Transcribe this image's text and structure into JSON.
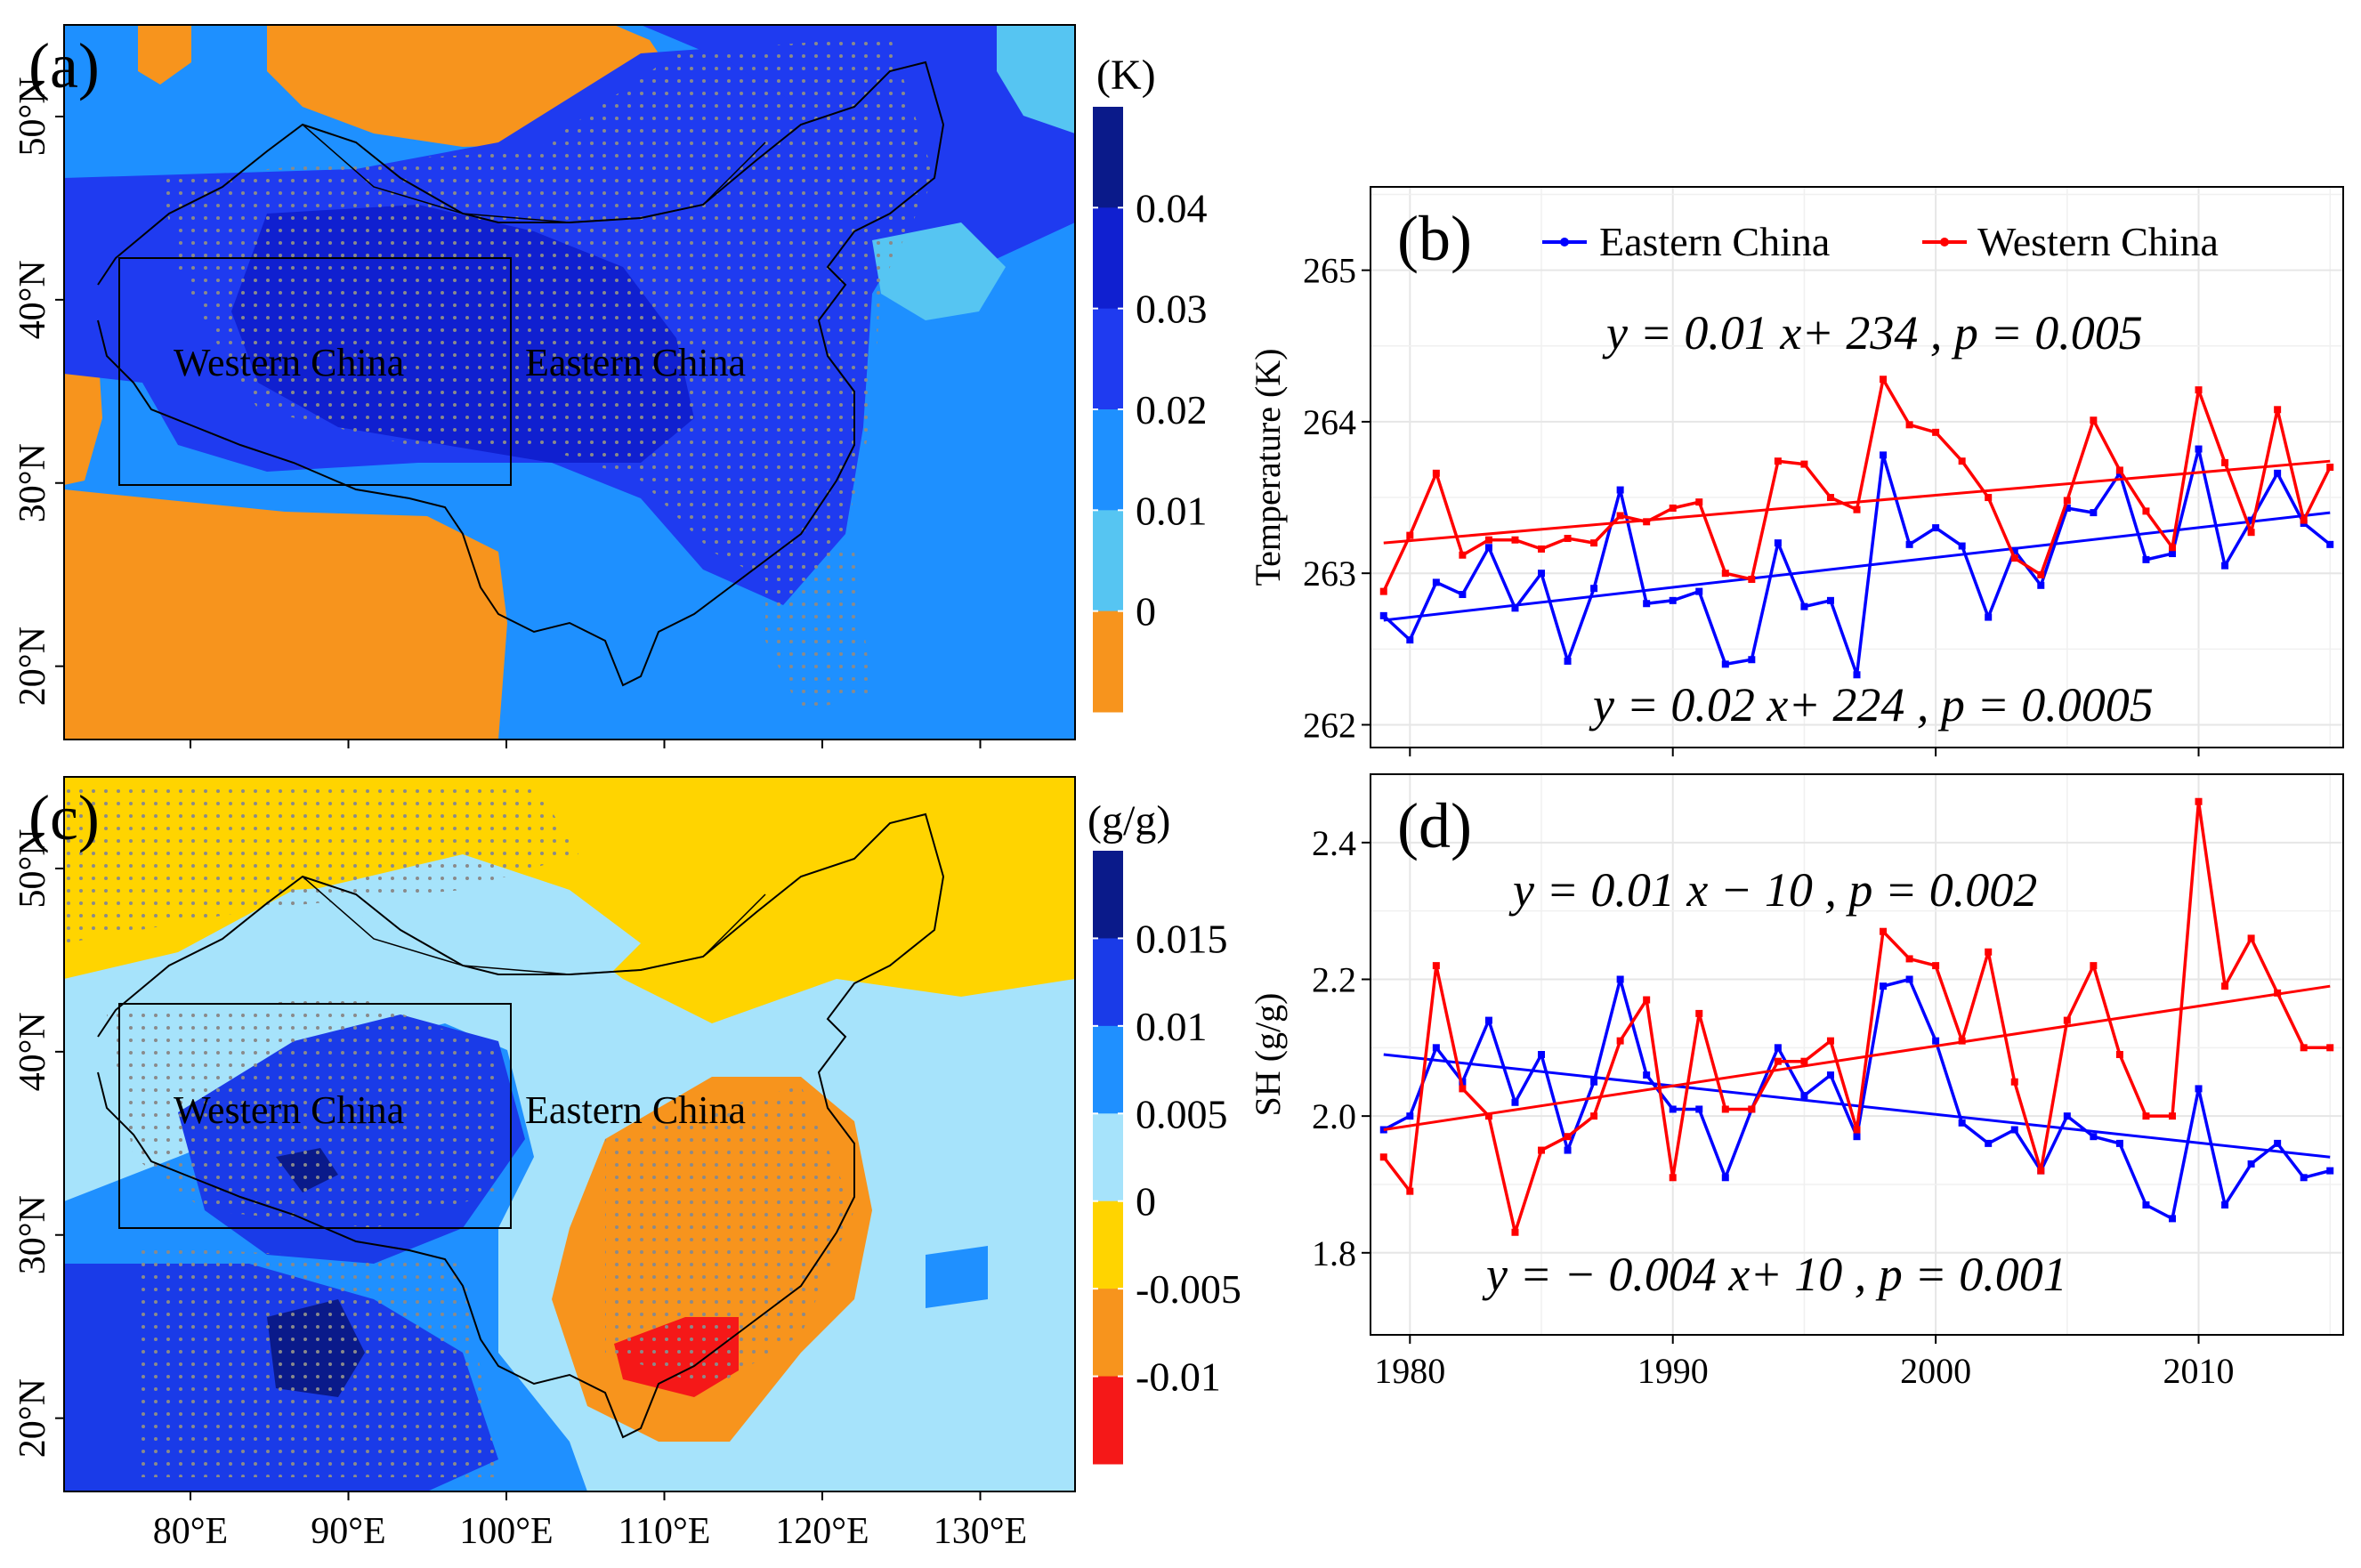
{
  "colors": {
    "orange": "#f7941d",
    "light_blue": "#56c5f2",
    "mid_blue": "#1e90ff",
    "blue": "#1f3bf0",
    "deep_blue": "#1020d0",
    "navy": "#0a1a8a",
    "sh_yellow": "#ffd400",
    "sh_orange": "#f7941d",
    "sh_red": "#f51818",
    "sh_pale_blue": "#a6e3fb",
    "sh_blue": "#1f90ff",
    "sh_dblue": "#1a3be8",
    "sh_navy": "#0a1a8a",
    "east_line": "#0000ff",
    "west_line": "#ff0000"
  },
  "chart_data": [
    {
      "panel": "(a)",
      "type": "heatmap",
      "unit": "(K)",
      "x_ticks": [
        "80°E",
        "90°E",
        "100°E",
        "110°E",
        "120°E",
        "130°E"
      ],
      "y_ticks": [
        "20°N",
        "30°N",
        "40°N",
        "50°N"
      ],
      "xlim": [
        72,
        136
      ],
      "ylim": [
        16,
        55
      ],
      "colorbar_labels": [
        "0.04",
        "0.03",
        "0.02",
        "0.01",
        "0"
      ],
      "colorbar_levels": [
        0.05,
        0.04,
        0.03,
        0.02,
        0.01,
        0,
        -0.01
      ],
      "region_box": {
        "lon": [
          75,
          100
        ],
        "lat": [
          30,
          40
        ]
      },
      "region_labels": [
        "Western China",
        "Eastern China"
      ]
    },
    {
      "panel": "(b)",
      "type": "line",
      "ylabel": "Temperature (K)",
      "xlim": [
        1978.5,
        2015.5
      ],
      "ylim": [
        261.85,
        265.55
      ],
      "y_ticks": [
        262,
        263,
        264,
        265
      ],
      "legend": [
        "Eastern China",
        "Western China"
      ],
      "legend_position": "top",
      "x": [
        1979,
        1980,
        1981,
        1982,
        1983,
        1984,
        1985,
        1986,
        1987,
        1988,
        1989,
        1990,
        1991,
        1992,
        1993,
        1994,
        1995,
        1996,
        1997,
        1998,
        1999,
        2000,
        2001,
        2002,
        2003,
        2004,
        2005,
        2006,
        2007,
        2008,
        2009,
        2010,
        2011,
        2012,
        2013,
        2014,
        2015
      ],
      "series": [
        {
          "name": "Eastern China",
          "values": [
            262.72,
            262.56,
            262.94,
            262.86,
            263.17,
            262.77,
            263.0,
            262.42,
            262.9,
            263.55,
            262.8,
            262.82,
            262.88,
            262.4,
            262.43,
            263.2,
            262.78,
            262.82,
            262.33,
            263.78,
            263.19,
            263.3,
            263.18,
            262.71,
            263.15,
            262.92,
            263.43,
            263.4,
            263.66,
            263.09,
            263.13,
            263.82,
            263.05,
            263.35,
            263.66,
            263.33,
            263.19
          ],
          "trend": {
            "start": 262.69,
            "end": 263.4
          }
        },
        {
          "name": "Western China",
          "values": [
            262.88,
            263.25,
            263.66,
            263.12,
            263.22,
            263.22,
            263.16,
            263.23,
            263.2,
            263.38,
            263.34,
            263.43,
            263.47,
            263.0,
            262.96,
            263.74,
            263.72,
            263.5,
            263.42,
            264.28,
            263.98,
            263.93,
            263.74,
            263.5,
            263.1,
            262.99,
            263.48,
            264.01,
            263.68,
            263.41,
            263.17,
            264.21,
            263.73,
            263.27,
            264.08,
            263.35,
            263.7
          ],
          "trend": {
            "start": 263.2,
            "end": 263.74
          }
        }
      ],
      "equations": [
        {
          "text": "y = 0.01 x+ 234 , p = 0.005",
          "series": "Western China"
        },
        {
          "text": "y = 0.02 x+ 224 , p = 0.0005",
          "series": "Eastern China"
        }
      ]
    },
    {
      "panel": "(c)",
      "type": "heatmap",
      "unit": "(g/g)",
      "x_ticks": [
        "80°E",
        "90°E",
        "100°E",
        "110°E",
        "120°E",
        "130°E"
      ],
      "y_ticks": [
        "20°N",
        "30°N",
        "40°N",
        "50°N"
      ],
      "xlim": [
        72,
        136
      ],
      "ylim": [
        16,
        55
      ],
      "colorbar_labels": [
        "0.015",
        "0.01",
        "0.005",
        "0",
        "-0.005",
        "-0.01"
      ],
      "colorbar_levels": [
        0.02,
        0.015,
        0.01,
        0.005,
        0,
        -0.005,
        -0.01,
        -0.015
      ],
      "region_box": {
        "lon": [
          75,
          100
        ],
        "lat": [
          30,
          40
        ]
      },
      "region_labels": [
        "Western China",
        "Eastern China"
      ]
    },
    {
      "panel": "(d)",
      "type": "line",
      "ylabel": "SH (g/g)",
      "xlim": [
        1978.5,
        2015.5
      ],
      "ylim": [
        1.68,
        2.5
      ],
      "y_ticks": [
        1.8,
        2.0,
        2.2,
        2.4
      ],
      "y_tick_labels": [
        "1.8",
        "2.0",
        "2.2",
        "2.4"
      ],
      "x_ticks": [
        1980,
        1990,
        2000,
        2010
      ],
      "x": [
        1979,
        1980,
        1981,
        1982,
        1983,
        1984,
        1985,
        1986,
        1987,
        1988,
        1989,
        1990,
        1991,
        1992,
        1993,
        1994,
        1995,
        1996,
        1997,
        1998,
        1999,
        2000,
        2001,
        2002,
        2003,
        2004,
        2005,
        2006,
        2007,
        2008,
        2009,
        2010,
        2011,
        2012,
        2013,
        2014,
        2015
      ],
      "series": [
        {
          "name": "Eastern China",
          "values": [
            1.98,
            2.0,
            2.1,
            2.05,
            2.14,
            2.02,
            2.09,
            1.95,
            2.05,
            2.2,
            2.06,
            2.01,
            2.01,
            1.91,
            2.01,
            2.1,
            2.03,
            2.06,
            1.97,
            2.19,
            2.2,
            2.11,
            1.99,
            1.96,
            1.98,
            1.92,
            2.0,
            1.97,
            1.96,
            1.87,
            1.85,
            2.04,
            1.87,
            1.93,
            1.96,
            1.91,
            1.92
          ],
          "trend": {
            "start": 2.09,
            "end": 1.94
          }
        },
        {
          "name": "Western China",
          "values": [
            1.94,
            1.89,
            2.22,
            2.04,
            2.0,
            1.83,
            1.95,
            1.97,
            2.0,
            2.11,
            2.17,
            1.91,
            2.15,
            2.01,
            2.01,
            2.08,
            2.08,
            2.11,
            1.98,
            2.27,
            2.23,
            2.22,
            2.11,
            2.24,
            2.05,
            1.92,
            2.14,
            2.22,
            2.09,
            2.0,
            2.0,
            2.46,
            2.19,
            2.26,
            2.18,
            2.1,
            2.1
          ],
          "trend": {
            "start": 1.98,
            "end": 2.19
          }
        }
      ],
      "equations": [
        {
          "text": "y = 0.01 x − 10 , p = 0.002",
          "series": "Western China"
        },
        {
          "text": "y = − 0.004 x+ 10 , p = 0.001",
          "series": "Eastern China"
        }
      ]
    }
  ]
}
